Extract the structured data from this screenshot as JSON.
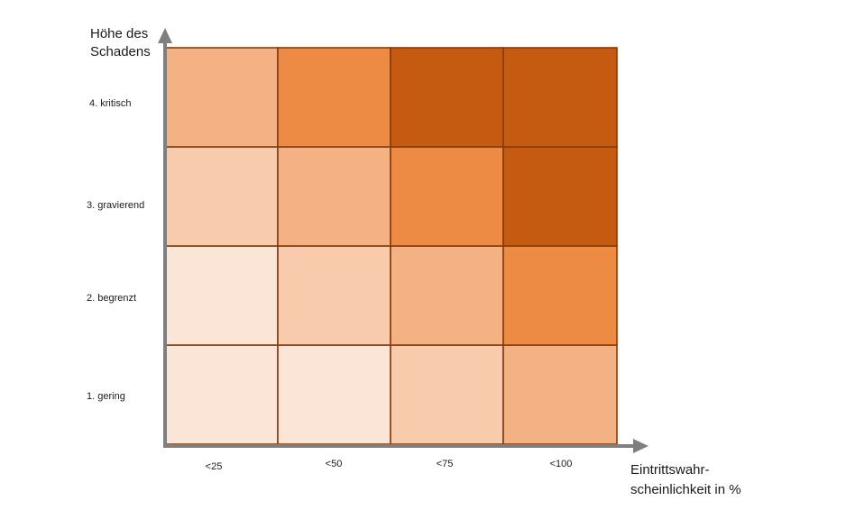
{
  "chart_data": {
    "type": "heatmap",
    "xlabel_lines": [
      "Eintrittswahr-",
      "scheinlichkeit in %"
    ],
    "ylabel_lines": [
      "Höhe des",
      "Schadens"
    ],
    "x_categories": [
      "<25",
      "<50",
      "<75",
      "<100"
    ],
    "y_categories": [
      "1. gering",
      "2. begrenzt",
      "3. gravierend",
      "4. kritisch"
    ],
    "risk_levels": [
      [
        1,
        1,
        2,
        3
      ],
      [
        1,
        2,
        3,
        4
      ],
      [
        2,
        3,
        4,
        5
      ],
      [
        3,
        4,
        5,
        5
      ]
    ],
    "level_colors": {
      "1": "#fbe5d6",
      "2": "#f8cbad",
      "3": "#f4b183",
      "4": "#ed8b45",
      "5": "#c55a11"
    },
    "border_color": "#843c0c",
    "axis_color": "#7f7f7f"
  }
}
